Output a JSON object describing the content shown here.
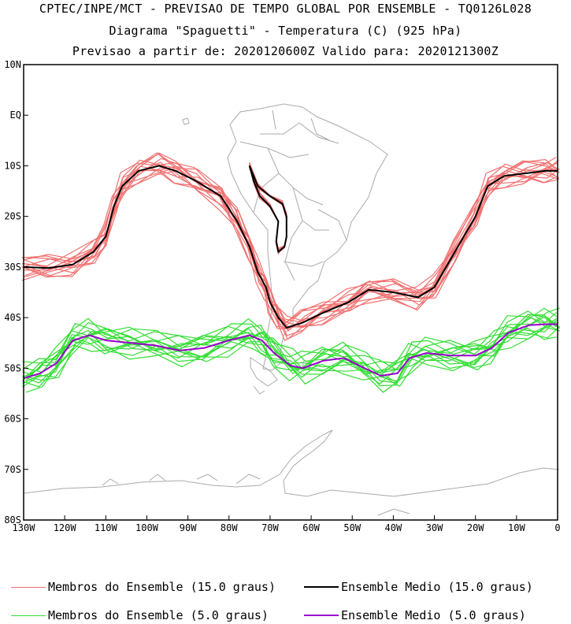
{
  "header": {
    "line1": "CPTEC/INPE/MCT - PREVISAO DE TEMPO GLOBAL POR ENSEMBLE - TQ0126L028",
    "line2": "Diagrama \"Spaguetti\" - Temperatura (C) (925 hPa)",
    "line3": "Previsao a partir de: 2020120600Z  Valido para: 2020121300Z"
  },
  "axes": {
    "lon_ticks": [
      "130W",
      "120W",
      "110W",
      "100W",
      "90W",
      "80W",
      "70W",
      "60W",
      "50W",
      "40W",
      "30W",
      "20W",
      "10W",
      "0"
    ],
    "lat_ticks": [
      "10N",
      "EQ",
      "10S",
      "20S",
      "30S",
      "40S",
      "50S",
      "60S",
      "70S",
      "80S"
    ],
    "lon_range": [
      -130,
      0
    ],
    "lat_range": [
      -80,
      10
    ]
  },
  "legend": [
    {
      "label": "Membros do Ensemble (15.0 graus)",
      "color": "#f07070"
    },
    {
      "label": "Ensemble Medio (15.0 graus)",
      "color": "#000000"
    },
    {
      "label": "Membros do Ensemble (5.0 graus)",
      "color": "#33dd33"
    },
    {
      "label": "Ensemble Medio (5.0 graus)",
      "color": "#9900cc"
    }
  ],
  "colors": {
    "coast": "#aaaaaa",
    "members15": "#f07070",
    "mean15": "#000000",
    "members5": "#33dd33",
    "mean5": "#9900cc"
  },
  "contours": {
    "mean15": [
      [
        -130,
        -30
      ],
      [
        -124,
        -30.2
      ],
      [
        -118,
        -29.5
      ],
      [
        -113,
        -27
      ],
      [
        -110,
        -24
      ],
      [
        -108,
        -18
      ],
      [
        -106,
        -14
      ],
      [
        -102,
        -11
      ],
      [
        -97,
        -10
      ],
      [
        -93,
        -11
      ],
      [
        -88,
        -13
      ],
      [
        -82,
        -16
      ],
      [
        -78,
        -21
      ],
      [
        -75,
        -26
      ],
      [
        -73,
        -31
      ],
      [
        -71,
        -34
      ],
      [
        -70,
        -37
      ],
      [
        -68,
        -40
      ],
      [
        -66,
        -42
      ],
      [
        -62,
        -41
      ],
      [
        -57,
        -39
      ],
      [
        -51,
        -37
      ],
      [
        -46,
        -34.5
      ],
      [
        -40,
        -35
      ],
      [
        -34,
        -36
      ],
      [
        -30,
        -34
      ],
      [
        -25,
        -27
      ],
      [
        -20,
        -20
      ],
      [
        -17,
        -14
      ],
      [
        -13,
        -12
      ],
      [
        -8,
        -11.5
      ],
      [
        -3,
        -11
      ],
      [
        0,
        -11
      ]
    ],
    "mean15_andes": [
      [
        -75,
        -10
      ],
      [
        -73,
        -14
      ],
      [
        -70,
        -16
      ],
      [
        -67,
        -17.5
      ],
      [
        -66,
        -20
      ],
      [
        -66,
        -24
      ],
      [
        -66.5,
        -26
      ],
      [
        -68,
        -27
      ],
      [
        -68.5,
        -25
      ],
      [
        -68,
        -21
      ],
      [
        -70,
        -18
      ],
      [
        -72.5,
        -16
      ],
      [
        -74,
        -13
      ],
      [
        -75,
        -10
      ]
    ],
    "mean5": [
      [
        -130,
        -52
      ],
      [
        -126,
        -51
      ],
      [
        -122,
        -49
      ],
      [
        -118,
        -44.5
      ],
      [
        -114,
        -43.5
      ],
      [
        -110,
        -44.5
      ],
      [
        -104,
        -45
      ],
      [
        -98,
        -45.5
      ],
      [
        -92,
        -46.5
      ],
      [
        -86,
        -46
      ],
      [
        -80,
        -44.5
      ],
      [
        -75,
        -43.5
      ],
      [
        -72,
        -44.5
      ],
      [
        -69,
        -47
      ],
      [
        -65,
        -49.5
      ],
      [
        -62,
        -50
      ],
      [
        -57,
        -48.5
      ],
      [
        -52,
        -48
      ],
      [
        -47,
        -50
      ],
      [
        -43,
        -51.5
      ],
      [
        -39,
        -51
      ],
      [
        -36,
        -48
      ],
      [
        -32,
        -47
      ],
      [
        -26,
        -47.5
      ],
      [
        -20,
        -47.5
      ],
      [
        -16,
        -46
      ],
      [
        -12,
        -43
      ],
      [
        -7,
        -41.5
      ],
      [
        -3,
        -41.3
      ],
      [
        0,
        -41.3
      ]
    ]
  }
}
